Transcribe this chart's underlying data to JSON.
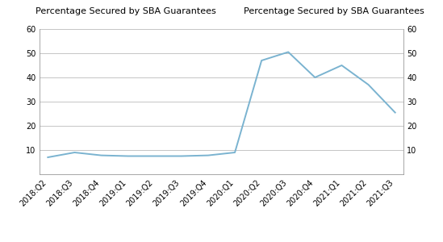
{
  "x_labels": [
    "2018:Q2",
    "2018:Q3",
    "2018:Q4",
    "2019:Q1",
    "2019:Q2",
    "2019:Q3",
    "2019:Q4",
    "2020:Q1",
    "2020:Q2",
    "2020:Q3",
    "2020:Q4",
    "2021:Q1",
    "2021:Q2",
    "2021:Q3"
  ],
  "y_values": [
    7.0,
    9.0,
    7.8,
    7.5,
    7.5,
    7.5,
    7.8,
    9.0,
    47.0,
    50.5,
    40.0,
    45.0,
    37.0,
    25.5
  ],
  "line_color": "#7ab3d0",
  "ylim": [
    0,
    60
  ],
  "yticks": [
    10,
    20,
    30,
    40,
    50,
    60
  ],
  "ylabel_left": "Percentage Secured by SBA Guarantees",
  "ylabel_right": "Percentage Secured by SBA Guarantees",
  "title_fontsize": 8.0,
  "tick_fontsize": 7.0,
  "line_width": 1.4,
  "bg_color": "#ffffff",
  "grid_color": "#bbbbbb"
}
